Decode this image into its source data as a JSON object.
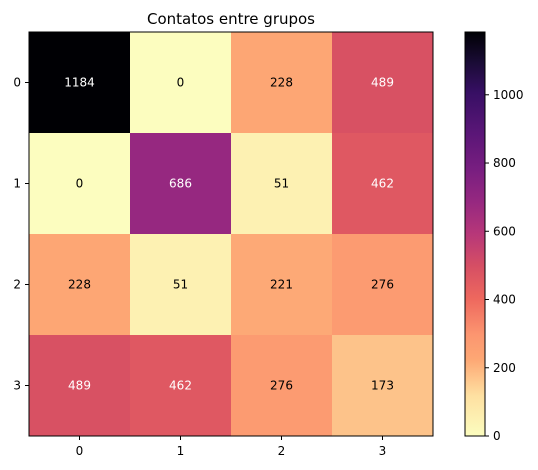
{
  "chart_data": {
    "type": "heatmap",
    "title": "Contatos entre grupos",
    "x_tick_labels": [
      "0",
      "1",
      "2",
      "3"
    ],
    "y_tick_labels": [
      "0",
      "1",
      "2",
      "3"
    ],
    "matrix": [
      [
        1184,
        0,
        228,
        489
      ],
      [
        0,
        686,
        51,
        462
      ],
      [
        228,
        51,
        221,
        276
      ],
      [
        489,
        462,
        276,
        173
      ]
    ],
    "colormap": "magma_r",
    "vmin": 0,
    "vmax": 1184,
    "colorbar_ticks": [
      0,
      200,
      400,
      600,
      800,
      1000
    ],
    "colorbar_tick_labels": [
      "0",
      "200",
      "400",
      "600",
      "800",
      "1000"
    ]
  }
}
